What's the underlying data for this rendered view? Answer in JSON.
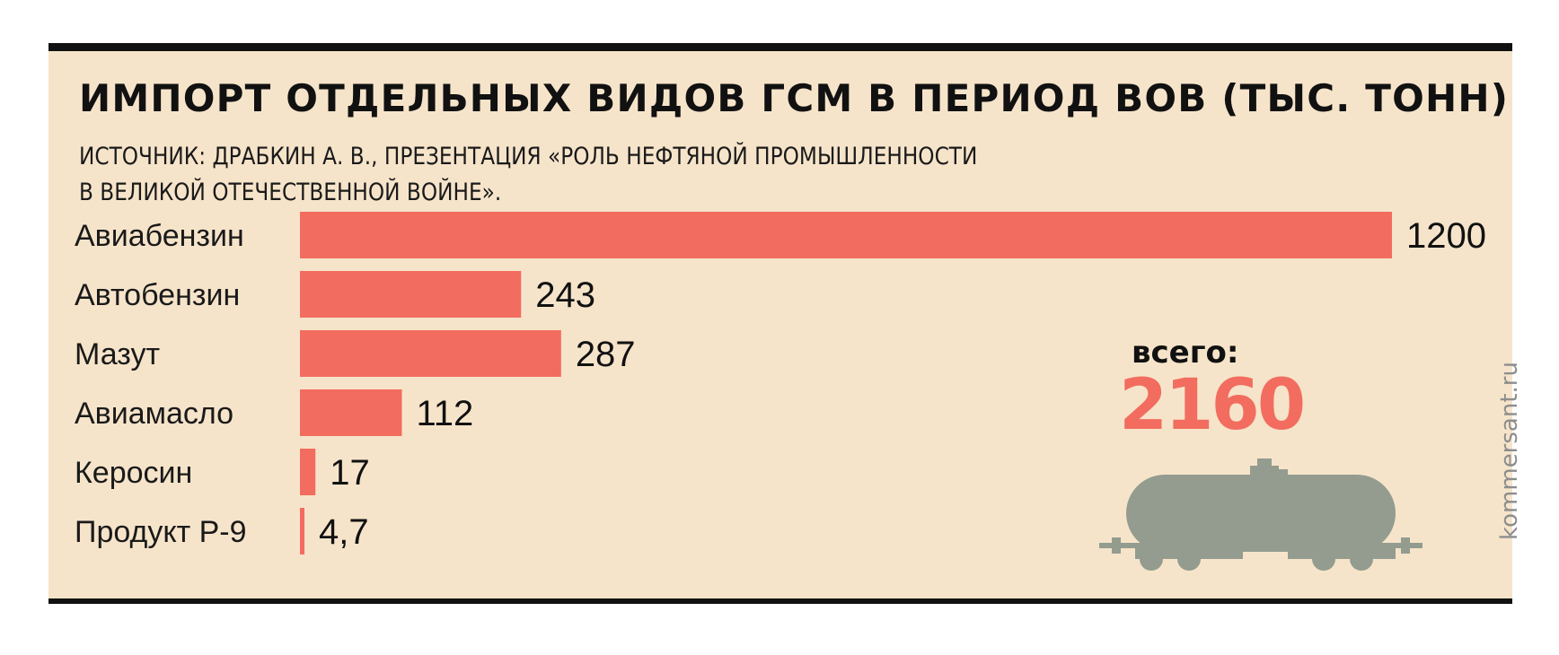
{
  "title": "ИМПОРТ ОТДЕЛЬНЫХ ВИДОВ ГСМ В ПЕРИОД ВОВ (ТЫС. ТОНН)",
  "source_lines": [
    "ИСТОЧНИК: ДРАБКИН А. В., ПРЕЗЕНТАЦИЯ «РОЛЬ НЕФТЯНОЙ ПРОМЫШЛЕННОСТИ",
    "В ВЕЛИКОЙ ОТЕЧЕСТВЕННОЙ ВОЙНЕ»."
  ],
  "total": {
    "label": "всего:",
    "value": "2160"
  },
  "watermark": "kommersant.ru",
  "icon": "tank-car-icon",
  "colors": {
    "background": "#f6e4ca",
    "bar": "#f26d5f",
    "border": "#111111",
    "tank": "#939c8f",
    "total": "#f26d5f"
  },
  "chart_data": {
    "type": "bar",
    "orientation": "horizontal",
    "categories": [
      "Авиабензин",
      "Автобензин",
      "Мазут",
      "Авиамасло",
      "Керосин",
      "Продукт Р-9"
    ],
    "values": [
      1200,
      243,
      287,
      112,
      17,
      4.7
    ],
    "value_labels": [
      "1200",
      "243",
      "287",
      "112",
      "17",
      "4,7"
    ],
    "xlim": [
      0,
      1200
    ],
    "grid": false,
    "legend": false
  }
}
